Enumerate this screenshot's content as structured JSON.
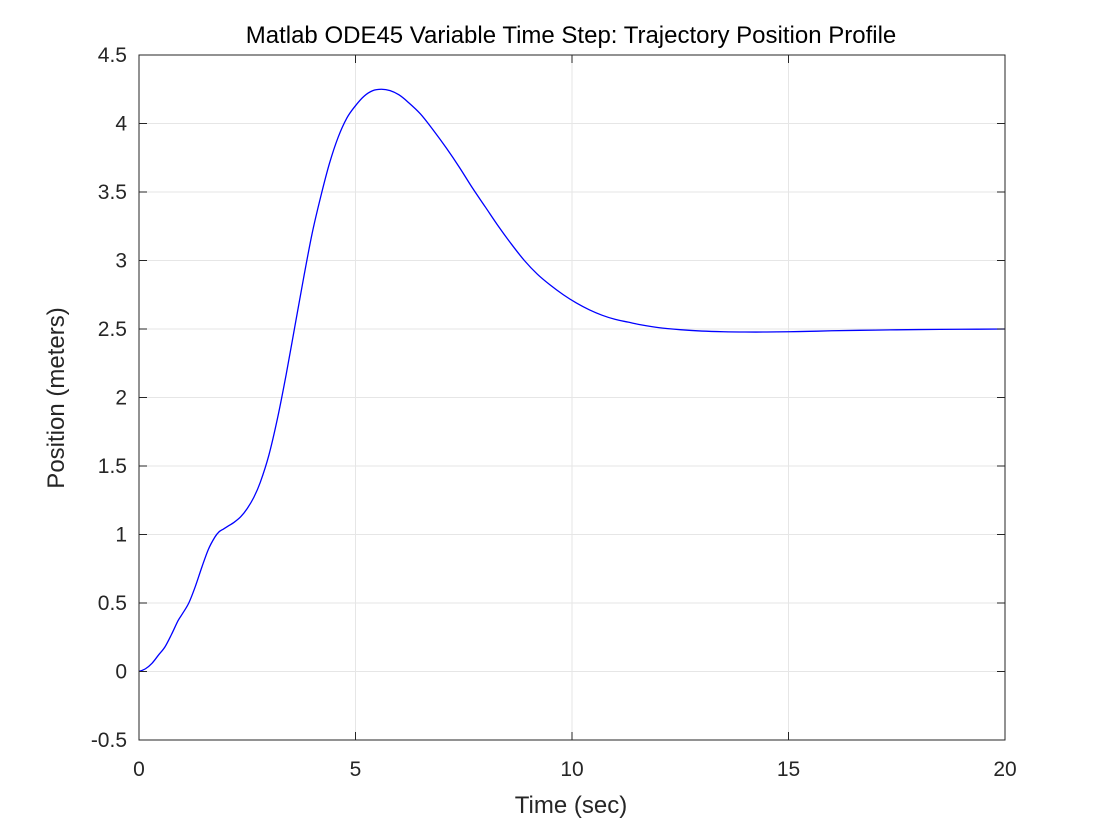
{
  "chart_data": {
    "type": "line",
    "title": "Matlab ODE45 Variable Time Step:  Trajectory Position Profile",
    "xlabel": "Time (sec)",
    "ylabel": "Position (meters)",
    "xlim": [
      0,
      20
    ],
    "ylim": [
      -0.5,
      4.5
    ],
    "xticks": [
      0,
      5,
      10,
      15,
      20
    ],
    "xtick_labels": [
      "0",
      "5",
      "10",
      "15",
      "20"
    ],
    "yticks": [
      -0.5,
      0,
      0.5,
      1,
      1.5,
      2,
      2.5,
      3,
      3.5,
      4,
      4.5
    ],
    "ytick_labels": [
      "-0.5",
      "0",
      "0.5",
      "1",
      "1.5",
      "2",
      "2.5",
      "3",
      "3.5",
      "4",
      "4.5"
    ],
    "grid": true,
    "colors": {
      "line": "#0000ff",
      "grid": "#e6e6e6",
      "axes": "#262626"
    },
    "series": [
      {
        "x": [
          0,
          0.15,
          0.3,
          0.45,
          0.6,
          0.75,
          0.9,
          1.0,
          1.15,
          1.3,
          1.45,
          1.6,
          1.75,
          1.85,
          1.95,
          2.05,
          2.2,
          2.35,
          2.5,
          2.65,
          2.8,
          3.0,
          3.2,
          3.4,
          3.6,
          3.8,
          4.0,
          4.2,
          4.4,
          4.6,
          4.8,
          5.0,
          5.2,
          5.4,
          5.6,
          5.8,
          6.0,
          6.2,
          6.5,
          6.8,
          7.1,
          7.4,
          7.7,
          8.0,
          8.3,
          8.6,
          8.9,
          9.2,
          9.5,
          9.8,
          10.1,
          10.4,
          10.7,
          11.0,
          11.3,
          11.6,
          12.0,
          12.5,
          13.0,
          13.5,
          14.0,
          14.5,
          15.0,
          15.5,
          16.0,
          17.0,
          18.0,
          19.0,
          20.0
        ],
        "y": [
          0.0,
          0.02,
          0.06,
          0.12,
          0.18,
          0.27,
          0.37,
          0.42,
          0.5,
          0.62,
          0.76,
          0.89,
          0.98,
          1.02,
          1.04,
          1.06,
          1.09,
          1.13,
          1.19,
          1.27,
          1.38,
          1.58,
          1.85,
          2.17,
          2.52,
          2.87,
          3.2,
          3.47,
          3.71,
          3.9,
          4.04,
          4.13,
          4.2,
          4.24,
          4.25,
          4.24,
          4.21,
          4.16,
          4.07,
          3.95,
          3.82,
          3.68,
          3.53,
          3.39,
          3.25,
          3.12,
          3.0,
          2.9,
          2.82,
          2.75,
          2.69,
          2.64,
          2.6,
          2.57,
          2.55,
          2.53,
          2.51,
          2.495,
          2.485,
          2.48,
          2.478,
          2.478,
          2.48,
          2.483,
          2.487,
          2.492,
          2.496,
          2.498,
          2.5
        ]
      }
    ]
  }
}
